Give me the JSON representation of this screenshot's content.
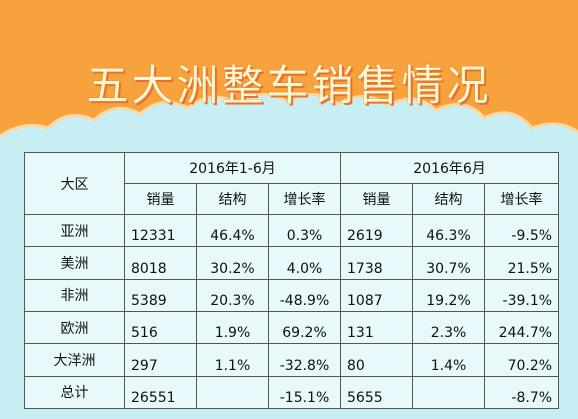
{
  "colors": {
    "banner_orange": "#f7a23d",
    "background_cyan": "#c7eef2"
  },
  "title": "五大洲整车销售情况",
  "table": {
    "region_header": "大区",
    "period1": "2016年1-6月",
    "period2": "2016年6月",
    "sub_headers": [
      "销量",
      "结构",
      "增长率",
      "销量",
      "结构",
      "增长率"
    ],
    "rows": [
      {
        "region": "亚洲",
        "p1_sales": "12331",
        "p1_share": "46.4%",
        "p1_growth": "0.3%",
        "p2_sales": "2619",
        "p2_share": "46.3%",
        "p2_growth": "-9.5%"
      },
      {
        "region": "美洲",
        "p1_sales": "8018",
        "p1_share": "30.2%",
        "p1_growth": "4.0%",
        "p2_sales": "1738",
        "p2_share": "30.7%",
        "p2_growth": "21.5%"
      },
      {
        "region": "非洲",
        "p1_sales": "5389",
        "p1_share": "20.3%",
        "p1_growth": "-48.9%",
        "p2_sales": "1087",
        "p2_share": "19.2%",
        "p2_growth": "-39.1%"
      },
      {
        "region": "欧洲",
        "p1_sales": "516",
        "p1_share": "1.9%",
        "p1_growth": "69.2%",
        "p2_sales": "131",
        "p2_share": "2.3%",
        "p2_growth": "244.7%"
      },
      {
        "region": "大洋洲",
        "p1_sales": "297",
        "p1_share": "1.1%",
        "p1_growth": "-32.8%",
        "p2_sales": "80",
        "p2_share": "1.4%",
        "p2_growth": "70.2%"
      },
      {
        "region": "总计",
        "p1_sales": "26551",
        "p1_share": "",
        "p1_growth": "-15.1%",
        "p2_sales": "5655",
        "p2_share": "",
        "p2_growth": "-8.7%"
      }
    ]
  }
}
